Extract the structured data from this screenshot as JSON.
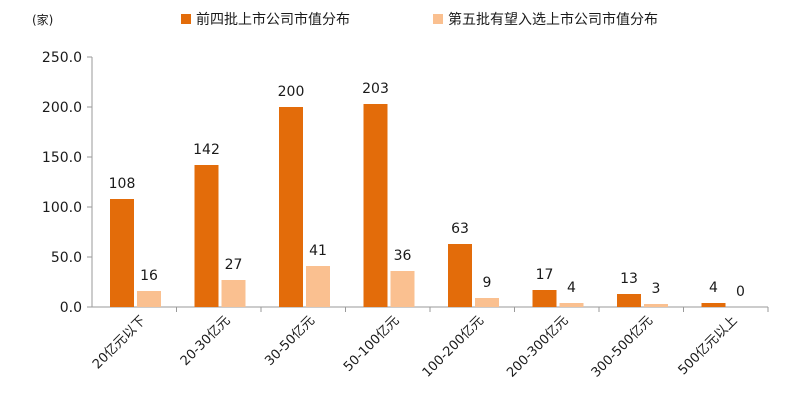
{
  "chart_data": {
    "type": "bar",
    "unit_label": "(家)",
    "categories": [
      "20亿元以下",
      "20-30亿元",
      "30-50亿元",
      "50-100亿元",
      "100-200亿元",
      "200-300亿元",
      "300-500亿元",
      "500亿元以上"
    ],
    "series": [
      {
        "name": "前四批上市公司市值分布",
        "color": "#E36C0A",
        "values": [
          108,
          142,
          200,
          203,
          63,
          17,
          13,
          4
        ]
      },
      {
        "name": "第五批有望入选上市公司市值分布",
        "color": "#FAC090",
        "values": [
          16,
          27,
          41,
          36,
          9,
          4,
          3,
          0
        ]
      }
    ],
    "yticks": [
      "0.0",
      "50.0",
      "100.0",
      "150.0",
      "200.0",
      "250.0"
    ],
    "ylim": [
      0,
      250
    ],
    "grid": false,
    "legend_position": "top"
  }
}
